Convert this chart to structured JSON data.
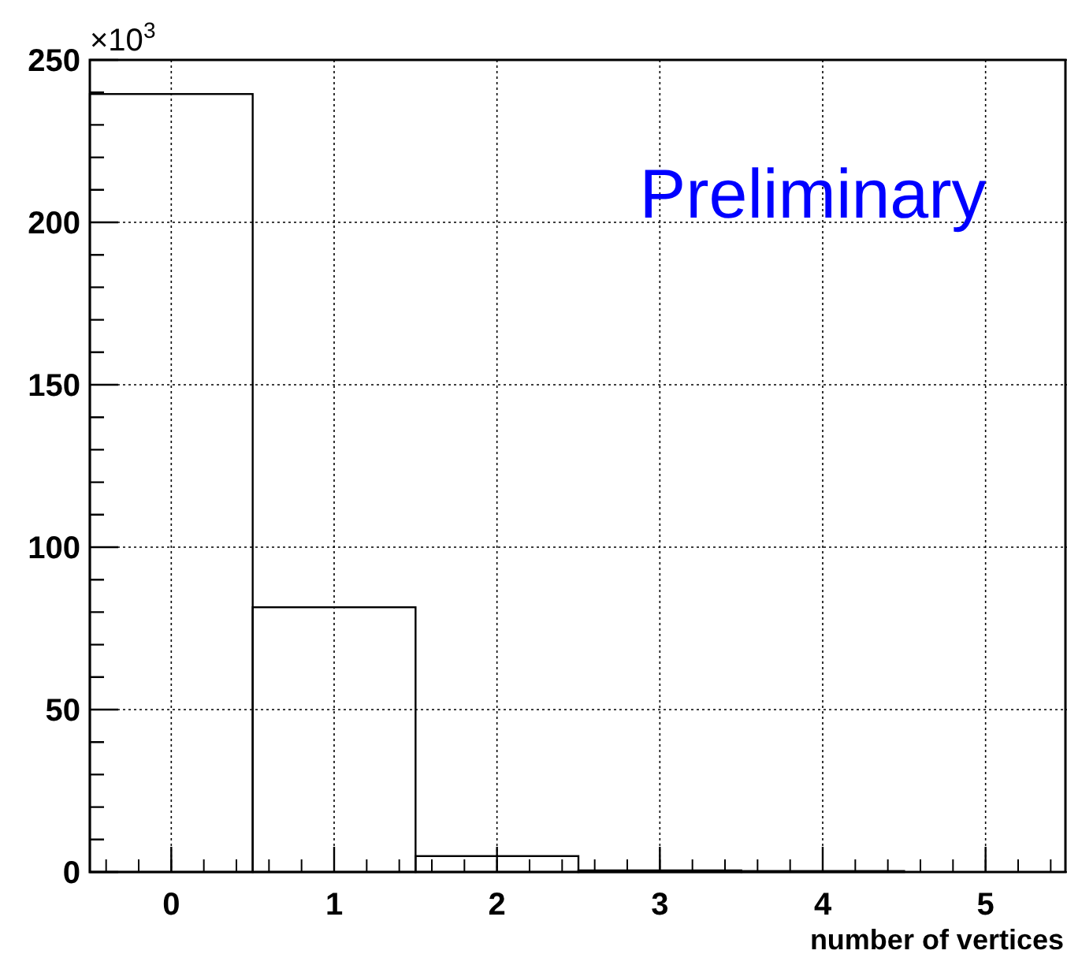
{
  "chart_data": {
    "type": "histogram",
    "xlabel": "number of vertices",
    "bins": [
      -0.5,
      0.5,
      1.5,
      2.5,
      3.5,
      4.5
    ],
    "values": [
      239.5,
      81.5,
      4.9,
      0.5,
      0.3
    ],
    "color": "#000000",
    "xlim": [
      -0.5,
      5.5
    ],
    "xticks": [
      0,
      1,
      2,
      3,
      4,
      5
    ],
    "ylim": [
      0,
      250
    ],
    "yticks": [
      0,
      50,
      100,
      150,
      200,
      250
    ],
    "grid": true,
    "annotations": [
      "×10$^{3}$",
      "Preliminary"
    ]
  }
}
